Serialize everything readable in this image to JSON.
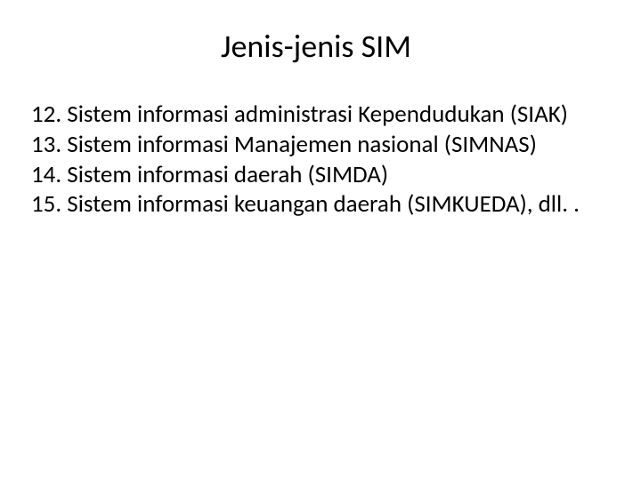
{
  "slide": {
    "title": "Jenis-jenis SIM",
    "title_fontsize": 36,
    "body_fontsize": 27,
    "text_color": "#000000",
    "background_color": "#ffffff",
    "items": [
      "12. Sistem informasi administrasi Kependudukan (SIAK)",
      "13. Sistem informasi Manajemen nasional (SIMNAS)",
      "14. Sistem informasi daerah (SIMDA)",
      "15. Sistem informasi keuangan daerah (SIMKUEDA), dll. ."
    ]
  }
}
